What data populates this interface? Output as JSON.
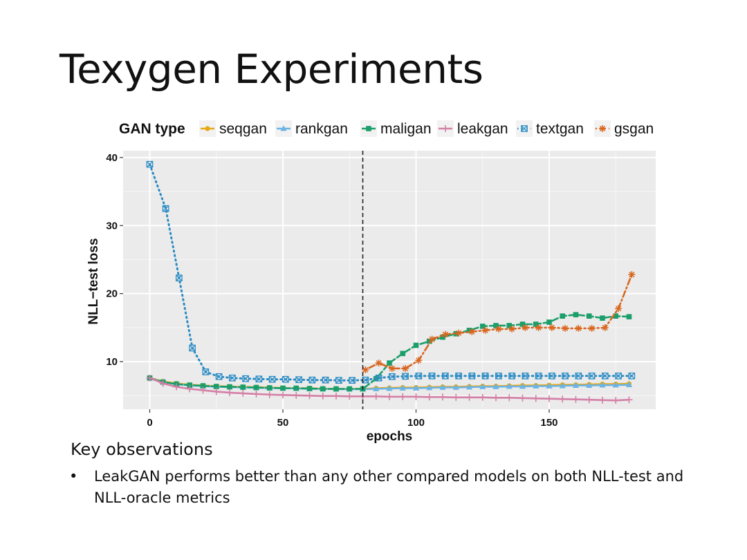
{
  "slide": {
    "title": "Texygen Experiments",
    "observations_heading": "Key observations",
    "observations": [
      "LeakGAN performs better than any other compared models on both NLL-test and NLL-oracle metrics"
    ]
  },
  "chart_data": {
    "type": "line",
    "title": "",
    "legend_title": "GAN type",
    "legend_position": "top",
    "xlabel": "epochs",
    "ylabel": "NLL−test loss",
    "xlim": [
      -10,
      190
    ],
    "ylim": [
      3,
      41
    ],
    "xticks": [
      0,
      50,
      100,
      150
    ],
    "yticks": [
      10,
      20,
      30,
      40
    ],
    "grid": true,
    "vline": {
      "x": 80,
      "style": "dashed"
    },
    "series": [
      {
        "name": "seqgan",
        "color": "#E6A817",
        "marker": "circle",
        "dash": "solid",
        "x": [
          0,
          5,
          10,
          15,
          20,
          25,
          30,
          35,
          40,
          45,
          50,
          55,
          60,
          65,
          70,
          75,
          80,
          85,
          90,
          95,
          100,
          105,
          110,
          115,
          120,
          125,
          130,
          135,
          140,
          145,
          150,
          155,
          160,
          165,
          170,
          175,
          180
        ],
        "y": [
          7.6,
          7.1,
          6.8,
          6.6,
          6.5,
          6.4,
          6.35,
          6.3,
          6.25,
          6.2,
          6.15,
          6.1,
          6.1,
          6.05,
          6.0,
          6.0,
          6.0,
          6.1,
          6.15,
          6.2,
          6.2,
          6.25,
          6.3,
          6.3,
          6.35,
          6.4,
          6.4,
          6.45,
          6.5,
          6.5,
          6.55,
          6.6,
          6.6,
          6.65,
          6.7,
          6.7,
          6.75
        ]
      },
      {
        "name": "rankgan",
        "color": "#6CB4E4",
        "marker": "triangle",
        "dash": "solid",
        "x": [
          0,
          5,
          10,
          15,
          20,
          25,
          30,
          35,
          40,
          45,
          50,
          55,
          60,
          65,
          70,
          75,
          80,
          85,
          90,
          95,
          100,
          105,
          110,
          115,
          120,
          125,
          130,
          135,
          140,
          145,
          150,
          155,
          160,
          165,
          170,
          175,
          180
        ],
        "y": [
          7.6,
          7.0,
          6.7,
          6.5,
          6.4,
          6.3,
          6.25,
          6.2,
          6.15,
          6.1,
          6.1,
          6.05,
          6.0,
          6.0,
          5.95,
          5.95,
          5.95,
          6.0,
          6.05,
          6.1,
          6.1,
          6.15,
          6.2,
          6.2,
          6.25,
          6.3,
          6.3,
          6.35,
          6.35,
          6.4,
          6.4,
          6.45,
          6.5,
          6.5,
          6.55,
          6.55,
          6.6
        ]
      },
      {
        "name": "maligan",
        "color": "#1B9E6A",
        "marker": "square",
        "dash": "longdash",
        "x": [
          0,
          5,
          10,
          15,
          20,
          25,
          30,
          35,
          40,
          45,
          50,
          55,
          60,
          65,
          70,
          75,
          80,
          85,
          90,
          95,
          100,
          105,
          110,
          115,
          120,
          125,
          130,
          135,
          140,
          145,
          150,
          155,
          160,
          165,
          170,
          175,
          180
        ],
        "y": [
          7.6,
          7.0,
          6.7,
          6.55,
          6.45,
          6.35,
          6.3,
          6.25,
          6.2,
          6.15,
          6.1,
          6.1,
          6.05,
          6.0,
          6.0,
          6.0,
          6.0,
          7.5,
          9.8,
          11.2,
          12.4,
          13.0,
          13.6,
          14.1,
          14.6,
          15.2,
          15.3,
          15.3,
          15.5,
          15.5,
          15.8,
          16.7,
          16.9,
          16.7,
          16.4,
          16.7,
          16.6
        ]
      },
      {
        "name": "leakgan",
        "color": "#D47FA6",
        "marker": "plus",
        "dash": "solid",
        "x": [
          0,
          5,
          10,
          15,
          20,
          25,
          30,
          35,
          40,
          45,
          50,
          55,
          60,
          65,
          70,
          75,
          80,
          85,
          90,
          95,
          100,
          105,
          110,
          115,
          120,
          125,
          130,
          135,
          140,
          145,
          150,
          155,
          160,
          165,
          170,
          175,
          180
        ],
        "y": [
          7.6,
          6.8,
          6.3,
          6.0,
          5.8,
          5.6,
          5.45,
          5.35,
          5.25,
          5.15,
          5.1,
          5.05,
          5.0,
          4.95,
          4.95,
          4.9,
          4.9,
          4.9,
          4.85,
          4.85,
          4.85,
          4.8,
          4.8,
          4.75,
          4.75,
          4.75,
          4.7,
          4.7,
          4.65,
          4.6,
          4.55,
          4.5,
          4.45,
          4.4,
          4.35,
          4.3,
          4.4
        ]
      },
      {
        "name": "textgan",
        "color": "#2B8CC4",
        "marker": "boxx",
        "dash": "dotted",
        "x": [
          0,
          6,
          11,
          16,
          21,
          26,
          31,
          36,
          41,
          46,
          51,
          56,
          61,
          66,
          71,
          76,
          81,
          86,
          91,
          96,
          101,
          106,
          111,
          116,
          121,
          126,
          131,
          136,
          141,
          146,
          151,
          156,
          161,
          166,
          171,
          176,
          181
        ],
        "y": [
          39.0,
          32.5,
          22.3,
          12.0,
          8.5,
          7.8,
          7.6,
          7.5,
          7.45,
          7.4,
          7.4,
          7.35,
          7.3,
          7.3,
          7.25,
          7.25,
          7.3,
          7.6,
          7.8,
          7.85,
          7.9,
          7.9,
          7.9,
          7.9,
          7.9,
          7.9,
          7.9,
          7.9,
          7.9,
          7.9,
          7.9,
          7.9,
          7.9,
          7.9,
          7.9,
          7.9,
          7.9
        ]
      },
      {
        "name": "gsgan",
        "color": "#D9661E",
        "marker": "star",
        "dash": "dotdash",
        "x": [
          81,
          86,
          91,
          96,
          101,
          106,
          111,
          116,
          121,
          126,
          131,
          136,
          141,
          146,
          151,
          156,
          161,
          166,
          171,
          176,
          181
        ],
        "y": [
          8.8,
          9.8,
          9.0,
          9.0,
          10.2,
          13.3,
          14.0,
          14.2,
          14.4,
          14.6,
          14.8,
          14.8,
          15.0,
          15.0,
          15.0,
          14.9,
          14.9,
          14.9,
          15.0,
          17.8,
          22.8
        ]
      }
    ]
  }
}
